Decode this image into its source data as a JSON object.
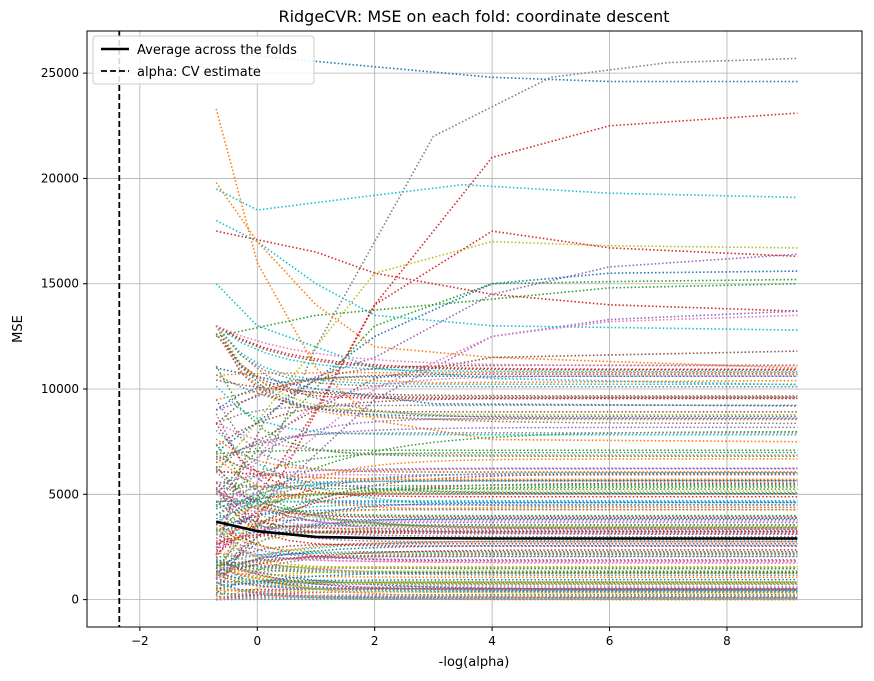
{
  "chart_data": {
    "type": "line",
    "title": "RidgeCVR: MSE on each fold: coordinate descent",
    "xlabel": "-log(alpha)",
    "ylabel": "MSE",
    "xlim": [
      -2.9,
      10.3
    ],
    "ylim": [
      -1300,
      27000
    ],
    "xticks": [
      -2,
      0,
      2,
      4,
      6,
      8
    ],
    "xtick_labels": [
      "−2",
      "0",
      "2",
      "4",
      "6",
      "8"
    ],
    "yticks": [
      0,
      5000,
      10000,
      15000,
      20000,
      25000
    ],
    "ytick_labels": [
      "0",
      "5000",
      "10000",
      "15000",
      "20000",
      "25000"
    ],
    "grid": true,
    "legend_position": "top-left",
    "legend": [
      {
        "label": "Average across the folds",
        "style": "solid"
      },
      {
        "label": "alpha: CV estimate",
        "style": "dashed"
      }
    ],
    "x_range_folds": [
      -0.7,
      9.2
    ],
    "average": {
      "name": "Average across the folds",
      "color": "#000000",
      "points": [
        [
          -0.7,
          3700
        ],
        [
          0,
          3250
        ],
        [
          1,
          2980
        ],
        [
          2,
          2920
        ],
        [
          4,
          2900
        ],
        [
          6,
          2900
        ],
        [
          8,
          2900
        ],
        [
          9.2,
          2900
        ]
      ]
    },
    "alpha_cv_estimate_x": -2.35,
    "fold_series_sample": [
      {
        "color": "#7f7f7f",
        "points": [
          [
            -0.7,
            1000
          ],
          [
            1,
            12000
          ],
          [
            3,
            22000
          ],
          [
            5,
            24800
          ],
          [
            7,
            25500
          ],
          [
            9.2,
            25700
          ]
        ]
      },
      {
        "color": "#1f77b4",
        "points": [
          [
            -0.7,
            26000
          ],
          [
            2,
            25300
          ],
          [
            4,
            24800
          ],
          [
            6,
            24600
          ],
          [
            9.2,
            24600
          ]
        ]
      },
      {
        "color": "#d62728",
        "points": [
          [
            -0.7,
            200
          ],
          [
            2,
            14000
          ],
          [
            4,
            21000
          ],
          [
            6,
            22500
          ],
          [
            9.2,
            23100
          ]
        ]
      },
      {
        "color": "#ff7f0e",
        "points": [
          [
            -0.7,
            23300
          ],
          [
            0,
            16000
          ],
          [
            1,
            11000
          ],
          [
            2,
            8500
          ],
          [
            4,
            7600
          ],
          [
            9.2,
            7500
          ]
        ]
      },
      {
        "color": "#17becf",
        "points": [
          [
            -0.7,
            19500
          ],
          [
            0,
            18500
          ],
          [
            2,
            19200
          ],
          [
            3.5,
            19700
          ],
          [
            6,
            19300
          ],
          [
            9.2,
            19100
          ]
        ]
      },
      {
        "color": "#bcbd22",
        "points": [
          [
            -0.7,
            6000
          ],
          [
            1,
            12000
          ],
          [
            2,
            15500
          ],
          [
            4,
            17000
          ],
          [
            6,
            16800
          ],
          [
            9.2,
            16700
          ]
        ]
      },
      {
        "color": "#d62728",
        "points": [
          [
            -0.7,
            2000
          ],
          [
            1,
            9000
          ],
          [
            2,
            14000
          ],
          [
            4,
            17500
          ],
          [
            6,
            16700
          ],
          [
            9.2,
            16300
          ]
        ]
      },
      {
        "color": "#9467bd",
        "points": [
          [
            -0.7,
            9000
          ],
          [
            2,
            11500
          ],
          [
            4,
            14500
          ],
          [
            6,
            15800
          ],
          [
            9.2,
            16400
          ]
        ]
      },
      {
        "color": "#1f77b4",
        "points": [
          [
            -0.7,
            7000
          ],
          [
            2,
            12500
          ],
          [
            4,
            15000
          ],
          [
            6,
            15500
          ],
          [
            9.2,
            15600
          ]
        ]
      },
      {
        "color": "#2ca02c",
        "points": [
          [
            -0.7,
            5000
          ],
          [
            2,
            13000
          ],
          [
            4,
            15000
          ],
          [
            6,
            15100
          ],
          [
            9.2,
            15200
          ]
        ]
      },
      {
        "color": "#d62728",
        "points": [
          [
            -0.7,
            17500
          ],
          [
            1,
            16500
          ],
          [
            2,
            15500
          ],
          [
            4,
            14500
          ],
          [
            6,
            14000
          ],
          [
            9.2,
            13700
          ]
        ]
      },
      {
        "color": "#9467bd",
        "points": [
          [
            -0.7,
            2500
          ],
          [
            2,
            9500
          ],
          [
            4,
            12500
          ],
          [
            6,
            13300
          ],
          [
            9.2,
            13700
          ]
        ]
      },
      {
        "color": "#17becf",
        "points": [
          [
            -0.7,
            18000
          ],
          [
            0,
            17000
          ],
          [
            1,
            15000
          ],
          [
            2,
            13500
          ],
          [
            4,
            13000
          ],
          [
            9.2,
            12800
          ]
        ]
      },
      {
        "color": "#e377c2",
        "points": [
          [
            -0.7,
            4000
          ],
          [
            2,
            10000
          ],
          [
            4,
            12500
          ],
          [
            6,
            13200
          ],
          [
            9.2,
            13500
          ]
        ]
      },
      {
        "color": "#2ca02c",
        "points": [
          [
            -0.7,
            12500
          ],
          [
            1,
            13500
          ],
          [
            3,
            14000
          ],
          [
            6,
            14800
          ],
          [
            9.2,
            15000
          ]
        ]
      },
      {
        "color": "#ff7f0e",
        "points": [
          [
            -0.7,
            19800
          ],
          [
            0,
            17000
          ],
          [
            1,
            14000
          ],
          [
            2,
            12000
          ],
          [
            4,
            11500
          ],
          [
            9.2,
            11000
          ]
        ]
      },
      {
        "color": "#8c564b",
        "points": [
          [
            -0.7,
            6500
          ],
          [
            2,
            10500
          ],
          [
            4,
            11500
          ],
          [
            9.2,
            11800
          ]
        ]
      },
      {
        "color": "#17becf",
        "points": [
          [
            -0.7,
            15000
          ],
          [
            0,
            13000
          ],
          [
            2,
            11000
          ],
          [
            4,
            10500
          ],
          [
            9.2,
            10200
          ]
        ]
      },
      {
        "color": "#1f77b4",
        "points": [
          [
            -0.7,
            11000
          ],
          [
            1,
            10000
          ],
          [
            3,
            9300
          ],
          [
            9.2,
            9200
          ]
        ]
      },
      {
        "color": "#ff7f0e",
        "points": [
          [
            -0.7,
            9500
          ],
          [
            1,
            10500
          ],
          [
            3,
            10300
          ],
          [
            9.2,
            10400
          ]
        ]
      }
    ]
  }
}
